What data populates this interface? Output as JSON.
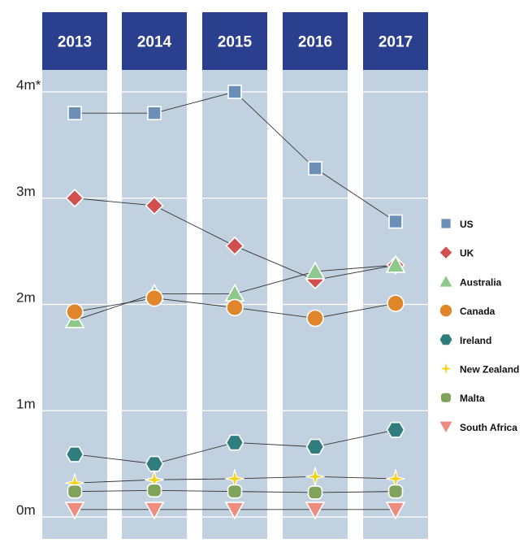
{
  "chart_data": {
    "type": "line",
    "title": "",
    "xlabel": "",
    "ylabel": "",
    "categories": [
      "2013",
      "2014",
      "2015",
      "2016",
      "2017"
    ],
    "ylim": [
      0,
      4
    ],
    "y_ticks": [
      {
        "value": 0,
        "label": "0m"
      },
      {
        "value": 1,
        "label": "1m"
      },
      {
        "value": 2,
        "label": "2m"
      },
      {
        "value": 3,
        "label": "3m"
      },
      {
        "value": 4,
        "label": "4m*"
      }
    ],
    "legend_position": "right",
    "series": [
      {
        "name": "US",
        "marker": "square",
        "color": "#6b8fb7",
        "values": [
          3.8,
          3.8,
          4.0,
          3.28,
          2.78
        ]
      },
      {
        "name": "UK",
        "marker": "diamond",
        "color": "#d05050",
        "values": [
          3.0,
          2.93,
          2.55,
          2.23,
          2.37
        ]
      },
      {
        "name": "Australia",
        "marker": "triangle-up",
        "color": "#8cc98a",
        "values": [
          1.85,
          2.1,
          2.1,
          2.31,
          2.37
        ]
      },
      {
        "name": "Canada",
        "marker": "circle",
        "color": "#e0862a",
        "values": [
          1.93,
          2.06,
          1.97,
          1.87,
          2.01
        ]
      },
      {
        "name": "Ireland",
        "marker": "hexagon",
        "color": "#2f7d7d",
        "values": [
          0.59,
          0.5,
          0.7,
          0.66,
          0.82
        ]
      },
      {
        "name": "New Zealand",
        "marker": "star",
        "color": "#f2d21c",
        "values": [
          0.32,
          0.35,
          0.36,
          0.38,
          0.36
        ]
      },
      {
        "name": "Malta",
        "marker": "rounded-square",
        "color": "#7fa35a",
        "values": [
          0.24,
          0.25,
          0.24,
          0.23,
          0.24
        ]
      },
      {
        "name": "South Africa",
        "marker": "triangle-down",
        "color": "#ee8c80",
        "values": [
          0.07,
          0.07,
          0.07,
          0.07,
          0.07
        ]
      }
    ],
    "colors": {
      "column_band": "#c2d1e0",
      "header": "#2b3f8f",
      "gridline": "#ffffff",
      "connector": "#333333"
    }
  }
}
